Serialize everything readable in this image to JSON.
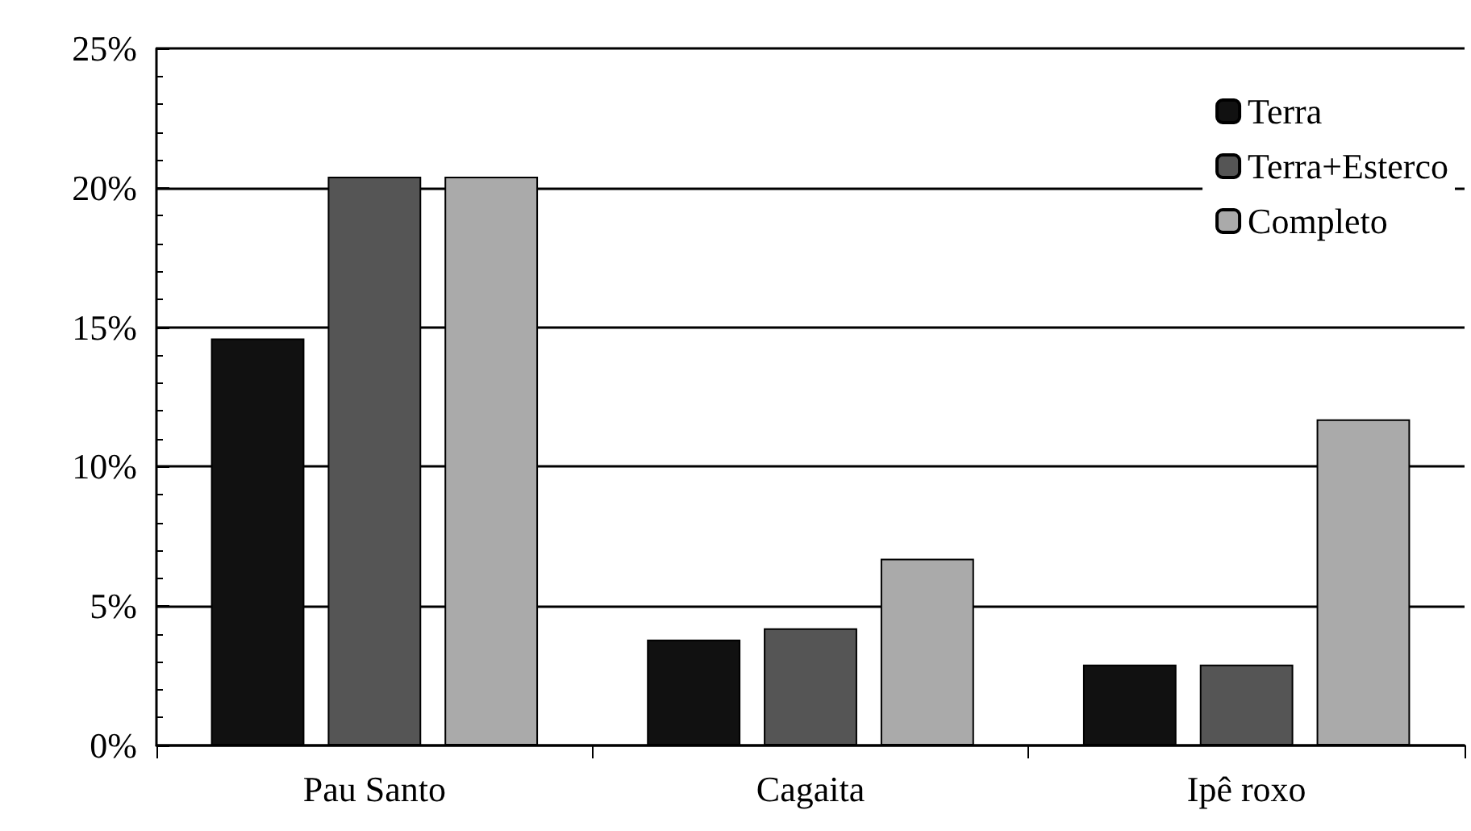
{
  "chart_data": {
    "type": "bar",
    "categories": [
      "Pau Santo",
      "Cagaita",
      "Ipê roxo"
    ],
    "series": [
      {
        "name": "Terra",
        "color": "#111111",
        "values": [
          14.6,
          3.8,
          2.9
        ]
      },
      {
        "name": "Terra+Esterco",
        "color": "#555555",
        "values": [
          20.4,
          4.2,
          2.9
        ]
      },
      {
        "name": "Completo",
        "color": "#aaaaaa",
        "values": [
          20.4,
          6.7,
          11.7
        ]
      }
    ],
    "ylim": [
      0,
      25
    ],
    "yticks": [
      {
        "value": 0,
        "label": "0%"
      },
      {
        "value": 5,
        "label": "5%"
      },
      {
        "value": 10,
        "label": "10%"
      },
      {
        "value": 15,
        "label": "15%"
      },
      {
        "value": 20,
        "label": "20%"
      },
      {
        "value": 25,
        "label": "25%"
      }
    ],
    "grid": "y",
    "legend": "top right"
  }
}
